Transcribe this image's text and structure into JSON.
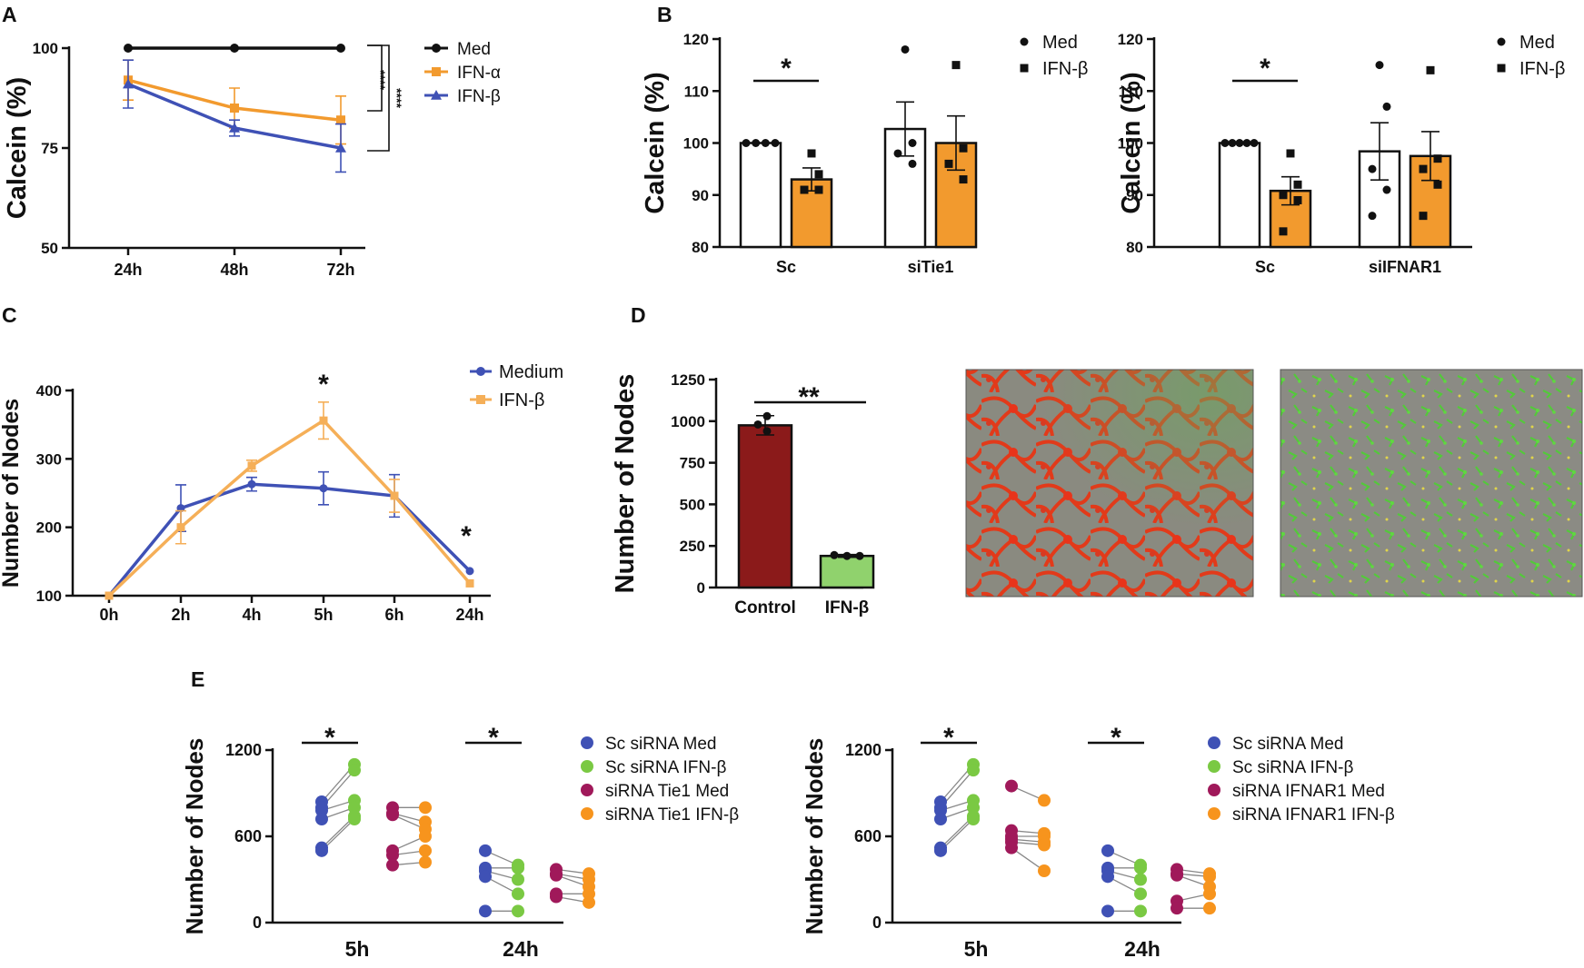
{
  "chart_data": [
    {
      "panel": "A",
      "type": "line",
      "ylabel": "Calcein (%)",
      "categories": [
        "24h",
        "48h",
        "72h"
      ],
      "ylim": [
        50,
        100
      ],
      "yticks": [
        "50",
        "75",
        "100"
      ],
      "series": [
        {
          "name": "Med",
          "color": "#111111",
          "marker": "circle",
          "values": [
            100,
            100,
            100
          ],
          "errors": [
            0,
            0,
            0
          ]
        },
        {
          "name": "IFN-α",
          "color": "#F29A2E",
          "marker": "square",
          "values": [
            92,
            85,
            82
          ],
          "errors": [
            5,
            5,
            6
          ]
        },
        {
          "name": "IFN-β",
          "color": "#3F51B5",
          "marker": "triangle",
          "values": [
            91,
            80,
            75
          ],
          "errors": [
            6,
            2,
            6
          ]
        }
      ],
      "annotations": [
        "****",
        "****"
      ]
    },
    {
      "panel": "B",
      "type": "bar",
      "ylabel": "Calcein (%)",
      "categories": [
        "Sc",
        "siTie1"
      ],
      "ylim": [
        80,
        120
      ],
      "yticks": [
        "80",
        "90",
        "100",
        "110",
        "120"
      ],
      "series": [
        {
          "name": "Med",
          "color": "#FFFFFF",
          "marker": "circle",
          "values": [
            100,
            102.7
          ],
          "errors": [
            0,
            5.2
          ],
          "points": [
            [
              100,
              100,
              100,
              100
            ],
            [
              118,
              100,
              98,
              96
            ]
          ]
        },
        {
          "name": "IFN-β",
          "color": "#F29A2E",
          "marker": "square",
          "values": [
            93,
            100
          ],
          "errors": [
            2.2,
            5.2
          ],
          "points": [
            [
              98,
              94,
              91,
              91
            ],
            [
              115,
              99,
              96,
              93
            ]
          ]
        }
      ],
      "annotations": [
        "*"
      ]
    },
    {
      "panel": "B2",
      "type": "bar",
      "ylabel": "Calcein (%)",
      "categories": [
        "Sc",
        "siIFNAR1"
      ],
      "ylim": [
        80,
        120
      ],
      "yticks": [
        "80",
        "90",
        "100",
        "110",
        "120"
      ],
      "series": [
        {
          "name": "Med",
          "color": "#FFFFFF",
          "marker": "circle",
          "values": [
            100,
            98.4
          ],
          "errors": [
            0,
            5.5
          ],
          "points": [
            [
              100,
              100,
              100,
              100,
              100
            ],
            [
              115,
              107,
              95,
              91,
              86
            ]
          ]
        },
        {
          "name": "IFN-β",
          "color": "#F29A2E",
          "marker": "square",
          "values": [
            90.8,
            97.5
          ],
          "errors": [
            2.7,
            4.7
          ],
          "points": [
            [
              98,
              92,
              90,
              89,
              83
            ],
            [
              114,
              97,
              95,
              92,
              86
            ]
          ]
        }
      ],
      "annotations": [
        "*"
      ]
    },
    {
      "panel": "C",
      "type": "line",
      "ylabel": "Number of Nodes",
      "categories": [
        "0h",
        "2h",
        "4h",
        "5h",
        "6h",
        "24h"
      ],
      "ylim": [
        100,
        400
      ],
      "yticks": [
        "100",
        "200",
        "300",
        "400"
      ],
      "series": [
        {
          "name": "Medium",
          "color": "#3F51B5",
          "marker": "circle",
          "values": [
            100,
            228,
            263,
            257,
            246,
            136
          ],
          "errors": [
            0,
            34,
            10,
            24,
            31,
            0
          ]
        },
        {
          "name": "IFN-β",
          "color": "#F5AF58",
          "marker": "square",
          "values": [
            100,
            200,
            290,
            356,
            246,
            118
          ],
          "errors": [
            0,
            24,
            8,
            27,
            24,
            0
          ]
        }
      ],
      "annotations": [
        "*",
        "*"
      ]
    },
    {
      "panel": "D",
      "type": "bar",
      "ylabel": "Number of Nodes",
      "categories": [
        "Control",
        "IFN-β"
      ],
      "values": [
        975,
        190
      ],
      "errors": [
        58,
        8
      ],
      "colors": [
        "#8B1A1A",
        "#90D26D"
      ],
      "points": [
        [
          1030,
          980,
          940
        ],
        [
          195,
          190,
          190
        ]
      ],
      "ylim": [
        0,
        1250
      ],
      "yticks": [
        "0",
        "250",
        "500",
        "750",
        "1000",
        "1250"
      ],
      "annotations": [
        "**"
      ]
    },
    {
      "panel": "E",
      "type": "scatter",
      "ylabel": "Number of Nodes",
      "categories": [
        "5h",
        "24h"
      ],
      "ylim": [
        0,
        1200
      ],
      "yticks": [
        "0",
        "600",
        "1200"
      ],
      "legend": [
        {
          "name": "Sc siRNA Med",
          "color": "#3F51B5"
        },
        {
          "name": "Sc siRNA IFN-β",
          "color": "#7AC943"
        },
        {
          "name": "siRNA Tie1 Med",
          "color": "#A0195A"
        },
        {
          "name": "siRNA Tie1 IFN-β",
          "color": "#F7941D"
        }
      ],
      "groups": [
        {
          "category": "5h",
          "left": [
            840,
            800,
            780,
            720,
            520,
            500
          ],
          "right": [
            1100,
            1060,
            850,
            800,
            740,
            720
          ]
        },
        {
          "category": "5h",
          "left": [
            800,
            760,
            750,
            500,
            470,
            400
          ],
          "right": [
            800,
            700,
            650,
            600,
            500,
            420
          ]
        },
        {
          "category": "24h",
          "left": [
            500,
            380,
            360,
            320,
            80
          ],
          "right": [
            400,
            380,
            300,
            200,
            80
          ]
        },
        {
          "category": "24h",
          "left": [
            370,
            340,
            330,
            200,
            180
          ],
          "right": [
            340,
            300,
            250,
            200,
            140
          ]
        }
      ],
      "annotations": [
        "*",
        "*"
      ]
    },
    {
      "panel": "E2",
      "type": "scatter",
      "ylabel": "Number of Nodes",
      "categories": [
        "5h",
        "24h"
      ],
      "ylim": [
        0,
        1200
      ],
      "yticks": [
        "0",
        "600",
        "1200"
      ],
      "legend": [
        {
          "name": "Sc siRNA Med",
          "color": "#3F51B5"
        },
        {
          "name": "Sc siRNA IFN-β",
          "color": "#7AC943"
        },
        {
          "name": "siRNA IFNAR1 Med",
          "color": "#A0195A"
        },
        {
          "name": "siRNA IFNAR1 IFN-β",
          "color": "#F7941D"
        }
      ],
      "groups": [
        {
          "category": "5h",
          "left": [
            840,
            800,
            780,
            720,
            520,
            500
          ],
          "right": [
            1100,
            1060,
            850,
            800,
            740,
            720
          ]
        },
        {
          "category": "5h",
          "left": [
            950,
            640,
            600,
            580,
            560,
            520
          ],
          "right": [
            850,
            620,
            600,
            560,
            540,
            360
          ]
        },
        {
          "category": "24h",
          "left": [
            500,
            380,
            360,
            320,
            80
          ],
          "right": [
            400,
            380,
            300,
            200,
            80
          ]
        },
        {
          "category": "24h",
          "left": [
            370,
            340,
            330,
            150,
            100
          ],
          "right": [
            340,
            320,
            250,
            200,
            100
          ]
        }
      ],
      "annotations": [
        "*",
        "*"
      ]
    }
  ],
  "panel_labels": [
    "A",
    "B",
    "C",
    "D",
    "E"
  ]
}
